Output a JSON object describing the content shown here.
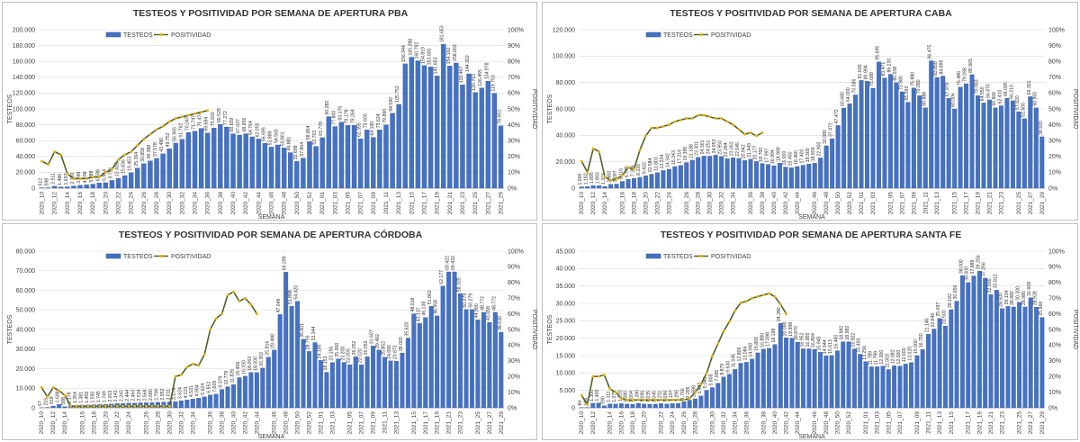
{
  "colors": {
    "bar": "#4472c4",
    "bar_edge": "#2f528f",
    "line": "#4f6228",
    "marker": "#e8b40c",
    "grid": "#d9d9d9",
    "label_box": "#ffffff"
  },
  "chart_data": [
    {
      "type": "bar",
      "title": "TESTEOS Y POSITIVIDAD POR SEMANA DE APERTURA PBA",
      "xlabel": "SEMANA",
      "ylabel": "TESTEOS",
      "y2label": "POSITIVIDAD",
      "legend": [
        "TESTEOS",
        "POSITIVIDAD"
      ],
      "ylim": [
        0,
        200000
      ],
      "y2lim": [
        0,
        100
      ],
      "yticks": [
        "0",
        "20.000",
        "40.000",
        "60.000",
        "80.000",
        "100.000",
        "120.000",
        "140.000",
        "160.000",
        "180.000",
        "200.000"
      ],
      "y2ticks": [
        "0%",
        "10%",
        "20%",
        "30%",
        "40%",
        "50%",
        "60%",
        "70%",
        "80%",
        "90%",
        "100%"
      ],
      "xticks": [
        "2020_10",
        "2020_12",
        "2020_14",
        "2020_16",
        "2020_18",
        "2020_20",
        "2020_22",
        "2020_24",
        "2020_26",
        "2020_28",
        "2020_30",
        "2020_32",
        "2020_34",
        "2020_36",
        "2020_38",
        "2020_40",
        "2020_42",
        "2020_44",
        "2020_46",
        "2020_48",
        "2020_50",
        "2020_52",
        "2021_01",
        "2021_03",
        "2021_05",
        "2021_07",
        "2021_09",
        "2021_11",
        "2021_13",
        "2021_15",
        "2021_17",
        "2021_19",
        "2021_21",
        "2021_23",
        "2021_25",
        "2021_27",
        "2021_29"
      ],
      "values": [
        512,
        598,
        2511,
        1486,
        1697,
        2750,
        3598,
        4198,
        5088,
        6598,
        6914,
        9751,
        12416,
        15836,
        19453,
        25364,
        30858,
        34388,
        37578,
        43490,
        49752,
        56965,
        61762,
        70247,
        71747,
        75474,
        69684,
        75920,
        80529,
        77272,
        68659,
        67037,
        68656,
        64764,
        62055,
        56695,
        51889,
        54565,
        50801,
        44881,
        33698,
        37864,
        58864,
        52703,
        63778,
        90282,
        77800,
        83376,
        79178,
        79264,
        62355,
        73600,
        64100,
        73624,
        79890,
        94590,
        105752,
        156944,
        165288,
        160792,
        154819,
        153000,
        141653,
        181653,
        154162,
        158002,
        130467,
        144302,
        120763,
        126455,
        134978,
        119753,
        78652
      ],
      "series": [
        {
          "name": "POSITIVIDAD",
          "values": [
            17,
            15,
            23,
            21,
            9,
            6,
            6,
            6,
            7,
            7,
            10,
            12,
            18,
            21,
            23,
            27,
            31,
            34,
            37,
            39,
            42,
            44,
            45,
            46,
            47,
            48,
            49
          ]
        }
      ]
    },
    {
      "type": "bar",
      "title": "TESTEOS Y POSITIVIDAD POR SEMANA DE APERTURA CABA",
      "xlabel": "SEMANA",
      "ylabel": "TESTEOS",
      "y2label": "POSITIVIDAD",
      "legend": [
        "TESTEOS",
        "POSITIVIDAD"
      ],
      "ylim": [
        0,
        120000
      ],
      "y2lim": [
        0,
        100
      ],
      "yticks": [
        "0",
        "20.000",
        "40.000",
        "60.000",
        "80.000",
        "100.000",
        "120.000"
      ],
      "y2ticks": [
        "0%",
        "10%",
        "20%",
        "30%",
        "40%",
        "50%",
        "60%",
        "70%",
        "80%",
        "90%",
        "100%"
      ],
      "xticks": [
        "2020_10",
        "2020_12",
        "2020_14",
        "2020_16",
        "2020_18",
        "2020_20",
        "2020_22",
        "2020_24",
        "2020_26",
        "2020_28",
        "2020_30",
        "2020_32",
        "2020_34",
        "2020_36",
        "2020_38",
        "2020_40",
        "2020_42",
        "2020_44",
        "2020_46",
        "2020_48",
        "2020_50",
        "2020_52",
        "2021_01",
        "2021_03",
        "2021_05",
        "2021_07",
        "2021_09",
        "2021_11",
        "2021_13",
        "2021_15",
        "2021_17",
        "2021_19",
        "2021_21",
        "2021_23",
        "2021_25",
        "2021_27",
        "2021_29"
      ],
      "values": [
        1000,
        1182,
        1895,
        1893,
        1315,
        2900,
        3097,
        5116,
        6775,
        7356,
        8226,
        9432,
        10584,
        11803,
        13334,
        14342,
        16343,
        17216,
        19395,
        21188,
        23301,
        24301,
        24251,
        24953,
        23950,
        22284,
        23053,
        22545,
        20942,
        21943,
        20177,
        18700,
        17997,
        16994,
        18999,
        16000,
        15450,
        16400,
        17400,
        18300,
        18900,
        22900,
        32080,
        37472,
        47472,
        60680,
        64000,
        70586,
        81600,
        80994,
        75688,
        95695,
        83471,
        86230,
        80038,
        72980,
        65093,
        75880,
        70080,
        60888,
        96475,
        83858,
        84899,
        67979,
        60006,
        76480,
        79098,
        85965,
        70063,
        64550,
        66870,
        60906,
        62410,
        68095,
        66210,
        57920,
        52600,
        69301,
        60900,
        38920
      ],
      "series": [
        {
          "name": "POSITIVIDAD",
          "values": [
            17,
            10,
            25,
            23,
            7,
            5,
            6,
            8,
            13,
            12,
            24,
            33,
            38,
            38,
            39,
            40,
            42,
            43,
            44,
            44,
            46,
            46,
            45,
            44,
            44,
            42,
            40,
            37,
            34,
            35,
            33,
            35
          ]
        }
      ]
    },
    {
      "type": "bar",
      "title": "TESTEOS Y POSITIVIDAD POR SEMANA DE APERTURA CÓRDOBA",
      "xlabel": "SEMANA",
      "ylabel": "TESTEOS",
      "y2label": "POSITIVIDAD",
      "legend": [
        "TESTEOS",
        "POSITIVIDAD"
      ],
      "ylim": [
        0,
        80000
      ],
      "y2lim": [
        0,
        100
      ],
      "yticks": [
        "0",
        "10.000",
        "20.000",
        "30.000",
        "40.000",
        "50.000",
        "60.000",
        "70.000",
        "80.000"
      ],
      "y2ticks": [
        "0%",
        "10%",
        "20%",
        "30%",
        "40%",
        "50%",
        "60%",
        "70%",
        "80%",
        "90%",
        "100%"
      ],
      "xticks": [
        "2020_10",
        "2020_12",
        "2020_14",
        "2020_16",
        "2020_18",
        "2020_20",
        "2020_22",
        "2020_24",
        "2020_26",
        "2020_28",
        "2020_30",
        "2020_32",
        "2020_34",
        "2020_36",
        "2020_38",
        "2020_40",
        "2020_42",
        "2020_44",
        "2020_46",
        "2020_48",
        "2020_50",
        "2020_52",
        "2021_01",
        "2021_03",
        "2021_05",
        "2021_07",
        "2021_09",
        "2021_11",
        "2021_13",
        "2021_15",
        "2021_17",
        "2021_19",
        "2021_21",
        "2021_23",
        "2021_25",
        "2021_27",
        "2021_29"
      ],
      "values": [
        67,
        216,
        918,
        1698,
        588,
        1178,
        1354,
        1381,
        1459,
        1590,
        1745,
        1749,
        2003,
        2143,
        2243,
        2444,
        2460,
        2534,
        2568,
        2680,
        2799,
        2952,
        3011,
        3174,
        3624,
        4021,
        4521,
        4904,
        5624,
        6552,
        7009,
        9379,
        10779,
        11826,
        15406,
        16150,
        18063,
        18000,
        20302,
        25916,
        29498,
        47649,
        69299,
        51898,
        54420,
        35001,
        28793,
        33344,
        24195,
        18153,
        23156,
        25000,
        23200,
        22000,
        26052,
        22020,
        26052,
        31607,
        29492,
        25852,
        24000,
        23872,
        28000,
        35620,
        48018,
        43137,
        46138,
        51862,
        46958,
        62177,
        69422,
        69432,
        58325,
        50279,
        50279,
        44990,
        48772,
        43658,
        48772,
        38630
      ],
      "series": [
        {
          "name": "POSITIVIDAD",
          "values": [
            13,
            7,
            13,
            11,
            8,
            1,
            1,
            1,
            1,
            1,
            1,
            1,
            1,
            1,
            1,
            1,
            1,
            1,
            1,
            1,
            1,
            1,
            1,
            20,
            21,
            26,
            28,
            27,
            34,
            50,
            57,
            60,
            72,
            74,
            68,
            70,
            66,
            60
          ]
        }
      ]
    },
    {
      "type": "bar",
      "title": "TESTEOS Y POSITIVIDAD POR SEMANA DE APERTURA SANTA FE",
      "xlabel": "SEMANA",
      "ylabel": "TESTEOS",
      "y2label": "POSITIVIDAD",
      "legend": [
        "TESTEOS",
        "POSITIVIDAD"
      ],
      "ylim": [
        0,
        45000
      ],
      "y2lim": [
        0,
        100
      ],
      "yticks": [
        "0",
        "5.000",
        "10.000",
        "15.000",
        "20.000",
        "25.000",
        "30.000",
        "35.000",
        "40.000",
        "45.000"
      ],
      "y2ticks": [
        "0%",
        "10%",
        "20%",
        "30%",
        "40%",
        "50%",
        "60%",
        "70%",
        "80%",
        "90%",
        "100%"
      ],
      "xticks": [
        "2020_10",
        "2020_12",
        "2020_14",
        "2020_16",
        "2020_18",
        "2020_20",
        "2020_22",
        "2020_24",
        "2020_26",
        "2020_28",
        "2020_30",
        "2020_32",
        "2020_34",
        "2020_36",
        "2020_38",
        "2020_40",
        "2020_42",
        "2020_44",
        "2020_46",
        "2020_48",
        "2020_50",
        "2020_52",
        "2021_01",
        "2021_03",
        "2021_05",
        "2021_07",
        "2021_09",
        "2021_11",
        "2021_13",
        "2021_15",
        "2021_17",
        "2021_19",
        "2021_21",
        "2021_23",
        "2021_25",
        "2021_27",
        "2021_29"
      ],
      "values": [
        84,
        104,
        1300,
        1400,
        590,
        1111,
        1075,
        1220,
        1080,
        1004,
        1290,
        1095,
        1035,
        1045,
        1211,
        1096,
        1197,
        1295,
        1766,
        2205,
        2598,
        3422,
        5045,
        5808,
        7065,
        8879,
        9630,
        11045,
        12806,
        13086,
        14060,
        15800,
        16890,
        17098,
        18198,
        24280,
        20090,
        19998,
        18870,
        16952,
        16955,
        16804,
        15945,
        14944,
        15013,
        16400,
        18982,
        18982,
        16922,
        15400,
        13256,
        11789,
        11799,
        12000,
        11003,
        12082,
        12000,
        12600,
        13020,
        15000,
        16750,
        21146,
        22640,
        25697,
        23500,
        28192,
        30650,
        38000,
        36000,
        37889,
        39256,
        37256,
        32500,
        33812,
        28500,
        29134,
        28980,
        30300,
        28980,
        31608,
        28928,
        25966
      ],
      "series": [
        {
          "name": "POSITIVIDAD",
          "values": [
            8,
            2,
            20,
            20,
            21,
            12,
            10,
            6,
            5,
            5,
            5,
            5,
            5,
            5,
            5,
            5,
            5,
            5,
            5,
            6,
            10,
            15,
            22,
            33,
            41,
            49,
            55,
            62,
            67,
            68,
            70,
            71,
            72,
            73,
            71,
            66,
            60
          ]
        }
      ]
    }
  ]
}
